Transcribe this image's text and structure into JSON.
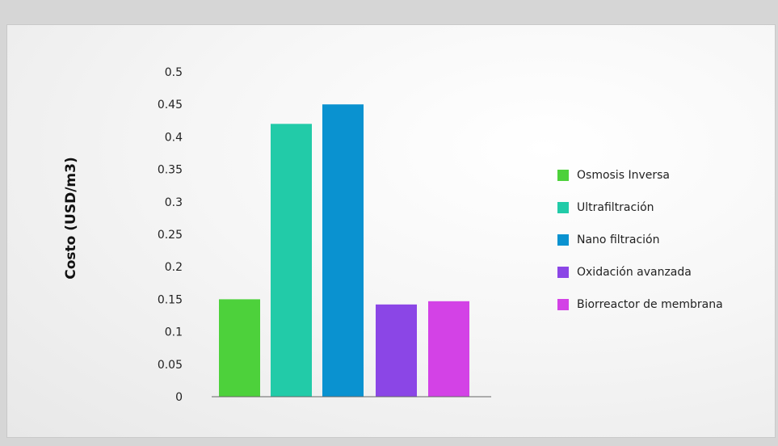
{
  "chart_data": {
    "type": "bar",
    "title": "",
    "xlabel": "",
    "ylabel": "Costo (USD/m3)",
    "ylim": [
      0,
      0.5
    ],
    "yticks": [
      "0",
      "0.05",
      "0.1",
      "0.15",
      "0.2",
      "0.25",
      "0.3",
      "0.35",
      "0.4",
      "0.45",
      "0.5"
    ],
    "grid": false,
    "legend_position": "right",
    "categories": [
      "Osmosis Inversa",
      "Ultrafiltración",
      "Nano filtración",
      "Oxidación avanzada",
      "Biorreactor de membrana"
    ],
    "values": [
      0.15,
      0.42,
      0.45,
      0.142,
      0.147
    ],
    "colors": [
      "#4dd13b",
      "#22cba8",
      "#0a92d0",
      "#8b46e6",
      "#d342e6"
    ]
  }
}
